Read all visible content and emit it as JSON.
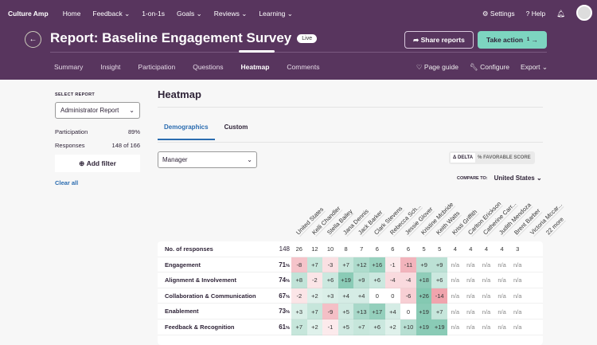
{
  "nav": {
    "logo": "Culture Amp",
    "items": [
      "Home",
      "Feedback ⌄",
      "1-on-1s",
      "Goals ⌄",
      "Reviews ⌄",
      "Learning ⌄"
    ],
    "settings": "Settings",
    "help": "Help"
  },
  "header": {
    "title": "Report: Baseline Engagement Survey",
    "status": "Live",
    "share": "Share reports",
    "take_action": "Take action",
    "take_action_count": "1",
    "tabs": [
      "Summary",
      "Insight",
      "Participation",
      "Questions",
      "Heatmap",
      "Comments"
    ],
    "active_tab": "Heatmap",
    "right_tabs": [
      "Page guide",
      "Configure",
      "Export ⌄"
    ]
  },
  "sidebar": {
    "select_label": "SELECT REPORT",
    "select_value": "Administrator Report",
    "participation_label": "Participation",
    "participation_value": "89%",
    "responses_label": "Responses",
    "responses_value": "148 of 166",
    "add_filter": "Add filter",
    "clear_all": "Clear all"
  },
  "main": {
    "title": "Heatmap",
    "subtabs": [
      "Demographics",
      "Custom"
    ],
    "active_subtab": "Demographics",
    "dropdown": "Manager",
    "toggle": [
      "Δ DELTA",
      "% FAVORABLE SCORE"
    ],
    "toggle_active": "Δ DELTA",
    "compare_label": "COMPARE TO:",
    "compare_value": "United States"
  },
  "heatmap": {
    "columns": [
      "United States",
      "Kelli Chandler",
      "Stella Bailey",
      "Jana Dennis",
      "Jack Barker",
      "Clark Stevens",
      "Rebecca Sch...",
      "Jessie Glover",
      "Kristine Mcbride",
      "Keith Watts",
      "Kristi Griffith",
      "Carlton Erickson",
      "Catherine Carr...",
      "Judith Mendoza",
      "Brent Barber",
      "Victoria Mccar...",
      "22 more"
    ],
    "responses": {
      "label": "No. of responses",
      "total": "148",
      "values": [
        "26",
        "12",
        "10",
        "8",
        "7",
        "6",
        "6",
        "6",
        "5",
        "5",
        "4",
        "4",
        "4",
        "4",
        "3"
      ]
    },
    "rows": [
      {
        "label": "Engagement",
        "total": "71",
        "values": [
          "-8",
          "+7",
          "-3",
          "+7",
          "+12",
          "+16",
          "-1",
          "-11",
          "+9",
          "+9",
          "n/a",
          "n/a",
          "n/a",
          "n/a",
          "n/a"
        ]
      },
      {
        "label": "Alignment & Involvement",
        "total": "74",
        "values": [
          "+8",
          "-2",
          "+6",
          "+19",
          "+9",
          "+6",
          "-4",
          "-4",
          "+18",
          "+6",
          "n/a",
          "n/a",
          "n/a",
          "n/a",
          "n/a"
        ]
      },
      {
        "label": "Collaboration & Communication",
        "total": "67",
        "values": [
          "-2",
          "+2",
          "+3",
          "+4",
          "+4",
          "0",
          "0",
          "-6",
          "+26",
          "-14",
          "n/a",
          "n/a",
          "n/a",
          "n/a",
          "n/a"
        ]
      },
      {
        "label": "Enablement",
        "total": "73",
        "values": [
          "+3",
          "+7",
          "-9",
          "+5",
          "+13",
          "+17",
          "+4",
          "0",
          "+19",
          "+7",
          "n/a",
          "n/a",
          "n/a",
          "n/a",
          "n/a"
        ]
      },
      {
        "label": "Feedback & Recognition",
        "total": "61",
        "values": [
          "+7",
          "+2",
          "-1",
          "+5",
          "+7",
          "+6",
          "+2",
          "+10",
          "+19",
          "+19",
          "n/a",
          "n/a",
          "n/a",
          "n/a",
          "n/a"
        ]
      }
    ],
    "positive_color": "#6fbfa5",
    "negative_color": "#ee9aa4"
  }
}
